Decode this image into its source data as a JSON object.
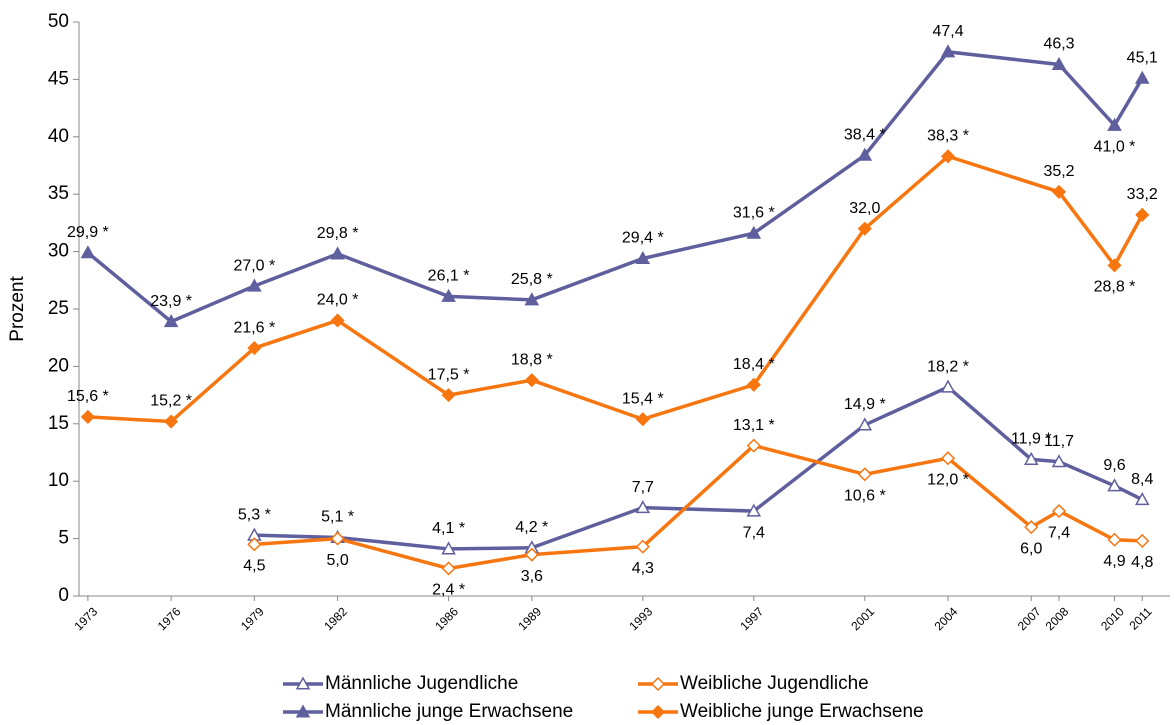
{
  "chart_data": {
    "type": "line",
    "y_label": "Prozent",
    "ylim": [
      0,
      50
    ],
    "yticks": [
      0,
      5,
      10,
      15,
      20,
      25,
      30,
      35,
      40,
      45,
      50
    ],
    "xlim": [
      1972.68,
      2012
    ],
    "xticks": [
      1973,
      1976,
      1979,
      1982,
      1986,
      1989,
      1993,
      1997,
      2001,
      2004,
      2007,
      2008,
      2010,
      2011
    ],
    "grid": false,
    "legend": "bottom",
    "series": [
      {
        "name": "Männliche Jugendliche",
        "color": "#5f5f9e",
        "marker": "triangle",
        "filled": false,
        "x": [
          1979,
          1982,
          1986,
          1989,
          1993,
          1997,
          2001,
          2004,
          2007,
          2008,
          2010,
          2011
        ],
        "values": [
          5.3,
          5.1,
          4.1,
          4.2,
          7.7,
          7.4,
          14.9,
          18.2,
          11.9,
          11.7,
          9.6,
          8.4
        ],
        "value_labels": [
          "5,3 *",
          "5,1 *",
          "4,1 *",
          "4,2 *",
          "7,7",
          "7,4",
          "14,9 *",
          "18,2 *",
          "11,9 *",
          "11,7",
          "9,6",
          "8,4"
        ]
      },
      {
        "name": "Weibliche Jugendliche",
        "color": "#f7760f",
        "marker": "diamond",
        "filled": false,
        "x": [
          1979,
          1982,
          1986,
          1989,
          1993,
          1997,
          2001,
          2004,
          2007,
          2008,
          2010,
          2011
        ],
        "values": [
          4.5,
          5.0,
          2.4,
          3.6,
          4.3,
          13.1,
          10.6,
          12.0,
          6.0,
          7.4,
          4.9,
          4.8
        ],
        "value_labels": [
          "4,5",
          "5,0",
          "2,4 *",
          "3,6",
          "4,3",
          "13,1 *",
          "10,6 *",
          "12,0 *",
          "6,0",
          "7,4",
          "4,9",
          "4,8"
        ]
      },
      {
        "name": "Männliche junge Erwachsene",
        "color": "#5f5f9e",
        "marker": "triangle",
        "filled": true,
        "x": [
          1973,
          1976,
          1979,
          1982,
          1986,
          1989,
          1993,
          1997,
          2001,
          2004,
          2008,
          2010,
          2011
        ],
        "values": [
          29.9,
          23.9,
          27.0,
          29.8,
          26.1,
          25.8,
          29.4,
          31.6,
          38.4,
          47.4,
          46.3,
          41.0,
          45.1
        ],
        "value_labels": [
          "29,9 *",
          "23,9 *",
          "27,0 *",
          "29,8 *",
          "26,1 *",
          "25,8 *",
          "29,4 *",
          "31,6 *",
          "38,4 *",
          "47,4",
          "46,3",
          "41,0 *",
          "45,1"
        ]
      },
      {
        "name": "Weibliche junge Erwachsene",
        "color": "#f7760f",
        "marker": "diamond",
        "filled": true,
        "x": [
          1973,
          1976,
          1979,
          1982,
          1986,
          1989,
          1993,
          1997,
          2001,
          2004,
          2008,
          2010,
          2011
        ],
        "values": [
          15.6,
          15.2,
          21.6,
          24.0,
          17.5,
          18.8,
          15.4,
          18.4,
          32.0,
          38.3,
          35.2,
          28.8,
          33.2
        ],
        "value_labels": [
          "15,6 *",
          "15,2 *",
          "21,6 *",
          "24,0 *",
          "17,5 *",
          "18,8 *",
          "15,4 *",
          "18,4 *",
          "32,0",
          "38,3 *",
          "35,2",
          "28,8 *",
          "33,2"
        ]
      }
    ]
  }
}
